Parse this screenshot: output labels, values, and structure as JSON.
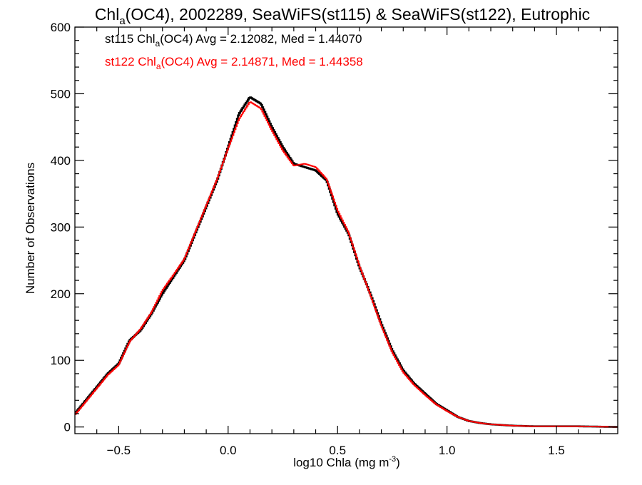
{
  "chart_data": {
    "type": "histogram",
    "title": {
      "prefix": "Chl",
      "sub": "a",
      "rest": "(OC4), 2002289, SeaWiFS(st115) & SeaWiFS(st122), Eutrophic"
    },
    "xlabel": {
      "prefix": "log10 Chla (mg m",
      "sup": "-3",
      "suffix": ")"
    },
    "ylabel": "Number of Observations",
    "xlim": [
      -0.7,
      1.78
    ],
    "ylim": [
      -10,
      600
    ],
    "xticks": [
      -0.5,
      0.0,
      0.5,
      1.0,
      1.5
    ],
    "xtick_labels": [
      "−0.5",
      "0.0",
      "0.5",
      "1.0",
      "1.5"
    ],
    "xminor_step": 0.1,
    "yticks": [
      0,
      100,
      200,
      300,
      400,
      500,
      600
    ],
    "ytick_labels": [
      "0",
      "100",
      "200",
      "300",
      "400",
      "500",
      "600"
    ],
    "yminor_step": 20,
    "grid": false,
    "legend": [
      {
        "color": "#000000",
        "prefix": "st115 Chl",
        "sub": "a",
        "rest": "(OC4) Avg = 2.12082, Med = 1.44070"
      },
      {
        "color": "#ff0000",
        "prefix": "st122 Chl",
        "sub": "a",
        "rest": "(OC4) Avg = 2.14871, Med = 1.44358"
      }
    ],
    "series": [
      {
        "color": "#000000",
        "points": [
          [
            -0.7,
            20
          ],
          [
            -0.6,
            60
          ],
          [
            -0.55,
            80
          ],
          [
            -0.5,
            95
          ],
          [
            -0.45,
            130
          ],
          [
            -0.4,
            145
          ],
          [
            -0.35,
            170
          ],
          [
            -0.3,
            200
          ],
          [
            -0.25,
            225
          ],
          [
            -0.2,
            250
          ],
          [
            -0.15,
            290
          ],
          [
            -0.1,
            330
          ],
          [
            -0.05,
            370
          ],
          [
            0.0,
            420
          ],
          [
            0.05,
            470
          ],
          [
            0.1,
            495
          ],
          [
            0.15,
            485
          ],
          [
            0.2,
            450
          ],
          [
            0.25,
            420
          ],
          [
            0.3,
            395
          ],
          [
            0.35,
            390
          ],
          [
            0.4,
            385
          ],
          [
            0.45,
            370
          ],
          [
            0.5,
            320
          ],
          [
            0.55,
            290
          ],
          [
            0.6,
            240
          ],
          [
            0.65,
            200
          ],
          [
            0.7,
            155
          ],
          [
            0.75,
            115
          ],
          [
            0.8,
            85
          ],
          [
            0.85,
            65
          ],
          [
            0.9,
            50
          ],
          [
            0.95,
            35
          ],
          [
            1.0,
            25
          ],
          [
            1.05,
            15
          ],
          [
            1.1,
            9
          ],
          [
            1.15,
            6
          ],
          [
            1.2,
            4
          ],
          [
            1.3,
            2
          ],
          [
            1.4,
            1
          ],
          [
            1.5,
            1
          ],
          [
            1.6,
            1
          ],
          [
            1.78,
            0
          ]
        ]
      },
      {
        "color": "#ff0000",
        "points": [
          [
            -0.7,
            18
          ],
          [
            -0.6,
            58
          ],
          [
            -0.55,
            78
          ],
          [
            -0.5,
            93
          ],
          [
            -0.45,
            128
          ],
          [
            -0.4,
            147
          ],
          [
            -0.35,
            172
          ],
          [
            -0.3,
            205
          ],
          [
            -0.25,
            228
          ],
          [
            -0.2,
            252
          ],
          [
            -0.15,
            292
          ],
          [
            -0.1,
            332
          ],
          [
            -0.05,
            372
          ],
          [
            0.0,
            418
          ],
          [
            0.05,
            462
          ],
          [
            0.1,
            488
          ],
          [
            0.15,
            478
          ],
          [
            0.2,
            445
          ],
          [
            0.25,
            415
          ],
          [
            0.3,
            392
          ],
          [
            0.35,
            395
          ],
          [
            0.4,
            390
          ],
          [
            0.45,
            372
          ],
          [
            0.5,
            325
          ],
          [
            0.55,
            292
          ],
          [
            0.6,
            242
          ],
          [
            0.65,
            198
          ],
          [
            0.7,
            152
          ],
          [
            0.75,
            112
          ],
          [
            0.8,
            82
          ],
          [
            0.85,
            63
          ],
          [
            0.9,
            48
          ],
          [
            0.95,
            34
          ],
          [
            1.0,
            24
          ],
          [
            1.05,
            15
          ],
          [
            1.1,
            9
          ],
          [
            1.15,
            6
          ],
          [
            1.2,
            4
          ],
          [
            1.3,
            2
          ],
          [
            1.4,
            1
          ],
          [
            1.5,
            1
          ],
          [
            1.6,
            1
          ],
          [
            1.78,
            0
          ]
        ]
      }
    ]
  }
}
